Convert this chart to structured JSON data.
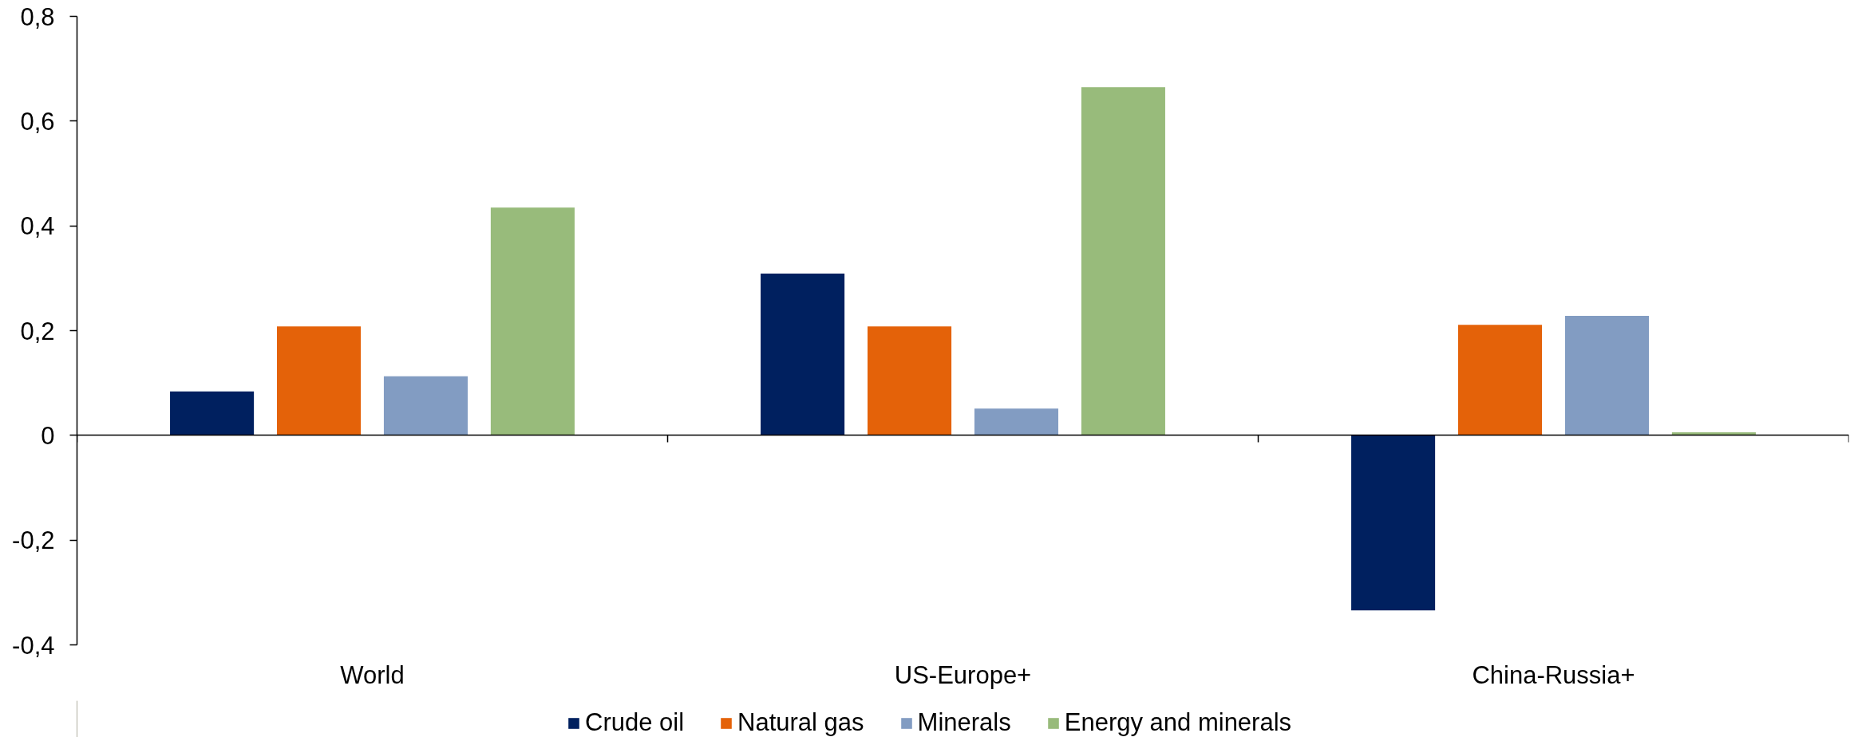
{
  "chart_data": {
    "type": "bar",
    "categories": [
      "World",
      "US-Europe+",
      "China-Russia+"
    ],
    "series": [
      {
        "name": "Crude oil",
        "color": "#00205f",
        "values": [
          0.084,
          0.309,
          -0.334
        ]
      },
      {
        "name": "Natural gas",
        "color": "#e46209",
        "values": [
          0.208,
          0.208,
          0.211
        ]
      },
      {
        "name": "Minerals",
        "color": "#829cc2",
        "values": [
          0.113,
          0.051,
          0.228
        ]
      },
      {
        "name": "Energy and minerals",
        "color": "#98bb7b",
        "values": [
          0.435,
          0.665,
          0.006
        ]
      }
    ],
    "ylim": [
      -0.4,
      0.8
    ],
    "yticks": [
      {
        "value": -0.4,
        "label": "-0,4"
      },
      {
        "value": -0.2,
        "label": "-0,2"
      },
      0,
      {
        "value": 0.2,
        "label": "0,2"
      },
      {
        "value": 0.4,
        "label": "0,4"
      },
      {
        "value": 0.6,
        "label": "0,6"
      },
      {
        "value": 0.8,
        "label": "0,8"
      }
    ],
    "legend": "bottom"
  }
}
